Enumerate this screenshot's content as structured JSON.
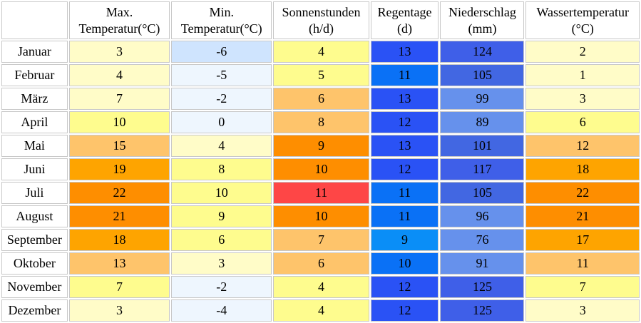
{
  "table": {
    "columns": [
      {
        "key": "max",
        "line1": "Max.",
        "line2": "Temperatur(°C)"
      },
      {
        "key": "min",
        "line1": "Min.",
        "line2": "Temperatur(°C)"
      },
      {
        "key": "sun",
        "line1": "Sonnenstunden",
        "line2": "(h/d)"
      },
      {
        "key": "rain_days",
        "line1": "Regentage",
        "line2": "(d)"
      },
      {
        "key": "precip",
        "line1": "Niederschlag",
        "line2": "(mm)"
      },
      {
        "key": "water",
        "line1": "Wassertemperatur",
        "line2": "(°C)"
      }
    ],
    "rows": [
      {
        "month": "Januar",
        "values": [
          "3",
          "-6",
          "4",
          "13",
          "124",
          "2"
        ],
        "colors": [
          "#fffcc8",
          "#cfe4fe",
          "#fefc8e",
          "#2a52f5",
          "#3f5fe8",
          "#fffcc8"
        ]
      },
      {
        "month": "Februar",
        "values": [
          "4",
          "-5",
          "5",
          "11",
          "105",
          "1"
        ],
        "colors": [
          "#fffcc8",
          "#eef6fe",
          "#fefc8e",
          "#0a71f6",
          "#4267e2",
          "#fffcc8"
        ]
      },
      {
        "month": "März",
        "values": [
          "7",
          "-2",
          "6",
          "13",
          "99",
          "3"
        ],
        "colors": [
          "#fffcc8",
          "#eef6fe",
          "#fec46b",
          "#2a52f5",
          "#6691ec",
          "#fffcc8"
        ]
      },
      {
        "month": "April",
        "values": [
          "10",
          "0",
          "8",
          "12",
          "89",
          "6"
        ],
        "colors": [
          "#fefc8e",
          "#eef6fe",
          "#fec46b",
          "#2a52f5",
          "#6691ec",
          "#fefc8e"
        ]
      },
      {
        "month": "Mai",
        "values": [
          "15",
          "4",
          "9",
          "13",
          "101",
          "12"
        ],
        "colors": [
          "#fec46b",
          "#fffcc8",
          "#fe8e00",
          "#2a52f5",
          "#4267e2",
          "#fec46b"
        ]
      },
      {
        "month": "Juni",
        "values": [
          "19",
          "8",
          "10",
          "12",
          "117",
          "18"
        ],
        "colors": [
          "#fea400",
          "#fefc8e",
          "#fe8e00",
          "#2a52f5",
          "#3f5fe8",
          "#fea400"
        ]
      },
      {
        "month": "Juli",
        "values": [
          "22",
          "10",
          "11",
          "11",
          "105",
          "22"
        ],
        "colors": [
          "#fe8e00",
          "#fefc8e",
          "#fe4646",
          "#0a71f6",
          "#4267e2",
          "#fe8e00"
        ]
      },
      {
        "month": "August",
        "values": [
          "21",
          "9",
          "10",
          "11",
          "96",
          "21"
        ],
        "colors": [
          "#fe8e00",
          "#fefc8e",
          "#fe8e00",
          "#0a71f6",
          "#6691ec",
          "#fe8e00"
        ]
      },
      {
        "month": "September",
        "values": [
          "18",
          "6",
          "7",
          "9",
          "76",
          "17"
        ],
        "colors": [
          "#fea400",
          "#fefc8e",
          "#fec46b",
          "#0a8ef7",
          "#6691ec",
          "#fea400"
        ]
      },
      {
        "month": "Oktober",
        "values": [
          "13",
          "3",
          "6",
          "10",
          "91",
          "11"
        ],
        "colors": [
          "#fec46b",
          "#fffcc8",
          "#fec46b",
          "#0a71f6",
          "#6691ec",
          "#fec46b"
        ]
      },
      {
        "month": "November",
        "values": [
          "7",
          "-2",
          "4",
          "12",
          "125",
          "7"
        ],
        "colors": [
          "#fefc8e",
          "#eef6fe",
          "#fefc8e",
          "#2a52f5",
          "#3f5fe8",
          "#fefc8e"
        ]
      },
      {
        "month": "Dezember",
        "values": [
          "3",
          "-4",
          "4",
          "12",
          "125",
          "3"
        ],
        "colors": [
          "#fffcc8",
          "#eef6fe",
          "#fefc8e",
          "#2a52f5",
          "#3f5fe8",
          "#fffcc8"
        ]
      }
    ]
  }
}
